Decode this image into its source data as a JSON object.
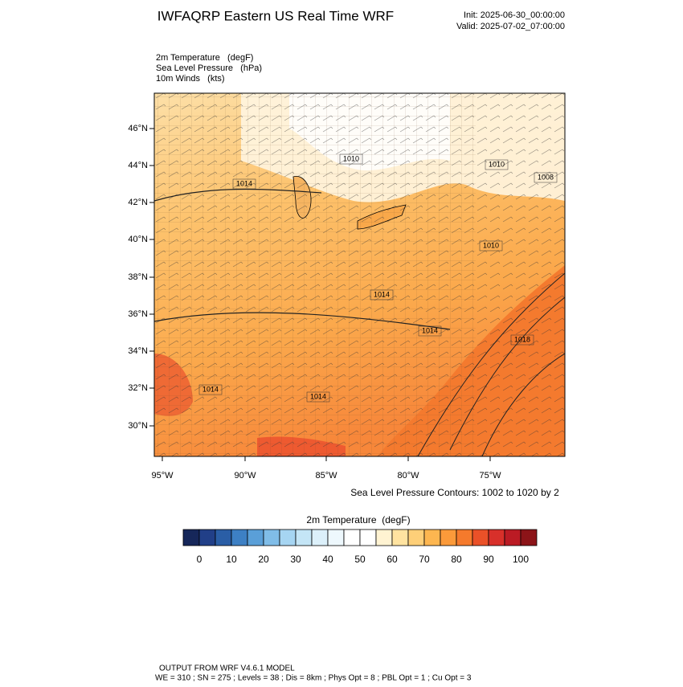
{
  "header": {
    "title": "IWFAQRP Eastern US Real Time WRF",
    "init": "Init: 2025-06-30_00:00:00",
    "valid": "Valid: 2025-07-02_07:00:00"
  },
  "fields": [
    "2m Temperature   (degF)",
    "Sea Level Pressure   (hPa)",
    "10m Winds   (kts)"
  ],
  "map": {
    "lat_labels": [
      "46°N",
      "44°N",
      "42°N",
      "40°N",
      "38°N",
      "36°N",
      "34°N",
      "32°N",
      "30°N"
    ],
    "lon_labels": [
      "95°W",
      "90°W",
      "85°W",
      "80°W",
      "75°W"
    ],
    "contour_labels": [
      "1010",
      "1014",
      "1010",
      "1008",
      "1010",
      "1014",
      "1014",
      "1018",
      "1014",
      "1014"
    ]
  },
  "contour_note": "Sea Level Pressure Contours: 1002 to 1020 by 2",
  "colorbar": {
    "title": "2m Temperature  (degF)",
    "ticks": [
      0,
      10,
      20,
      30,
      40,
      50,
      60,
      70,
      80,
      90,
      100
    ],
    "colors": [
      "#16275a",
      "#213f88",
      "#2a5ea6",
      "#3d80c4",
      "#5a9fd8",
      "#80bde8",
      "#a6d5f2",
      "#c4e5f6",
      "#dcf0fa",
      "#eef8fd",
      "#ffffff",
      "#ffffff",
      "#fff3d2",
      "#ffe3a0",
      "#fecf78",
      "#fdb650",
      "#fb9a3a",
      "#f57a2c",
      "#ea5128",
      "#d8302a",
      "#bb1b24",
      "#8c1418"
    ]
  },
  "footer": {
    "line1": "OUTPUT FROM WRF V4.6.1 MODEL",
    "line2": "WE = 310 ; SN = 275 ; Levels = 38 ; Dis = 8km ; Phys Opt = 8 ; PBL Opt = 1 ; Cu Opt = 3"
  }
}
